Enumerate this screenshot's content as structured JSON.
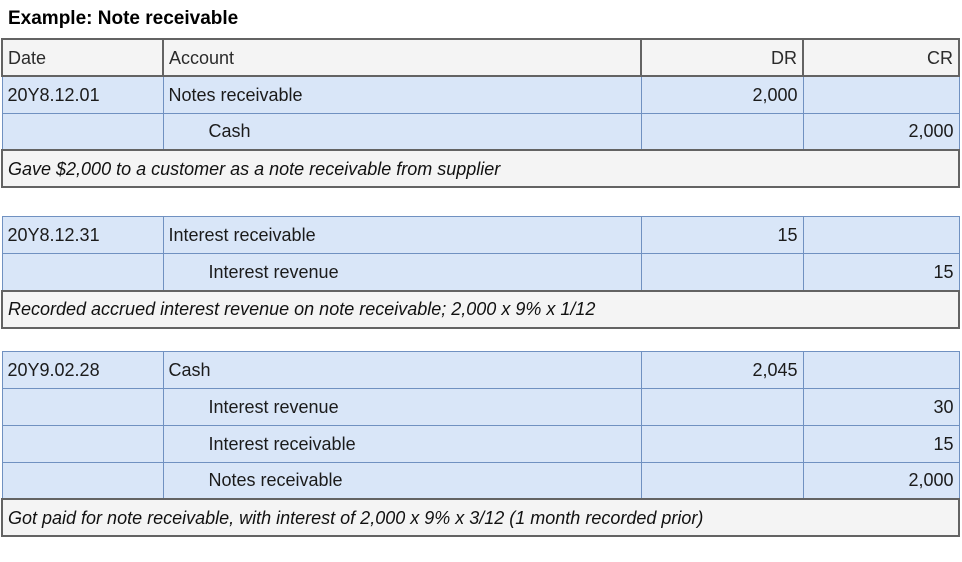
{
  "page": {
    "title": "Example: Note receivable"
  },
  "colors": {
    "row_fill": "#d9e6f8",
    "row_border": "#7091c1",
    "panel_fill": "#f4f4f4",
    "panel_border": "#636363",
    "text": "#1b1b1b"
  },
  "table": {
    "headers": {
      "date": "Date",
      "account": "Account",
      "dr": "DR",
      "cr": "CR"
    },
    "blocks": [
      {
        "rows": [
          {
            "date": "20Y8.12.01",
            "account": "Notes receivable",
            "dr": "2,000",
            "cr": ""
          },
          {
            "date": "",
            "account": "Cash",
            "dr": "",
            "cr": "2,000"
          }
        ],
        "note": "Gave $2,000 to a customer as a note receivable from supplier"
      },
      {
        "rows": [
          {
            "date": "20Y8.12.31",
            "account": "Interest receivable",
            "dr": "15",
            "cr": ""
          },
          {
            "date": "",
            "account": "Interest revenue",
            "dr": "",
            "cr": "15"
          }
        ],
        "note": "Recorded accrued interest revenue on note receivable; 2,000 x 9% x 1/12"
      },
      {
        "rows": [
          {
            "date": "20Y9.02.28",
            "account": "Cash",
            "dr": "2,045",
            "cr": ""
          },
          {
            "date": "",
            "account": "Interest revenue",
            "dr": "",
            "cr": "30"
          },
          {
            "date": "",
            "account": "Interest receivable",
            "dr": "",
            "cr": "15"
          },
          {
            "date": "",
            "account": "Notes receivable",
            "dr": "",
            "cr": "2,000"
          }
        ],
        "note": "Got paid for note receivable, with interest of 2,000 x 9% x 3/12 (1 month recorded prior)"
      }
    ]
  }
}
